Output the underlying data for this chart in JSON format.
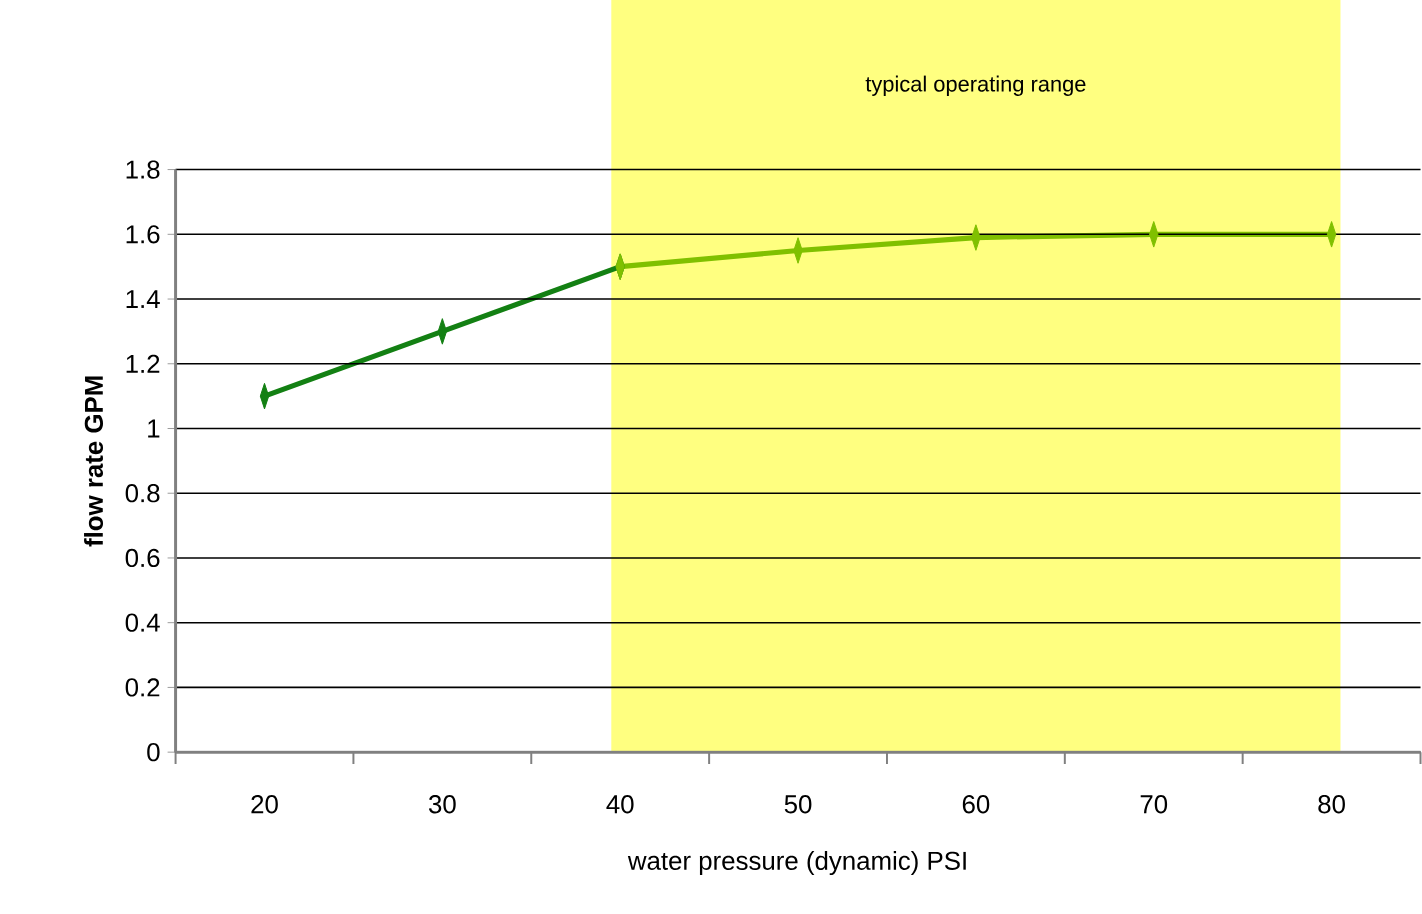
{
  "chart_data": {
    "type": "line",
    "xlabel": "water pressure (dynamic) PSI",
    "ylabel": "flow rate GPM",
    "categories": [
      "20",
      "30",
      "40",
      "50",
      "60",
      "70",
      "80"
    ],
    "series": [
      {
        "color": "#138013",
        "values": [
          1.1,
          1.3,
          1.5,
          null,
          null,
          null,
          null
        ]
      },
      {
        "color": "#80c000",
        "values": [
          null,
          null,
          1.5,
          1.55,
          1.59,
          1.6,
          1.6
        ]
      }
    ],
    "ylim": [
      0,
      1.8
    ],
    "yticks": [
      0,
      0.2,
      0.4,
      0.6,
      0.8,
      1,
      1.2,
      1.4,
      1.6,
      1.8
    ],
    "grid": "y",
    "marker": "diamond",
    "line_style": "solid",
    "bands": [
      {
        "axis": "x",
        "from": "40",
        "to": "80",
        "label": "typical operating range",
        "color": "#ffff80"
      }
    ]
  }
}
